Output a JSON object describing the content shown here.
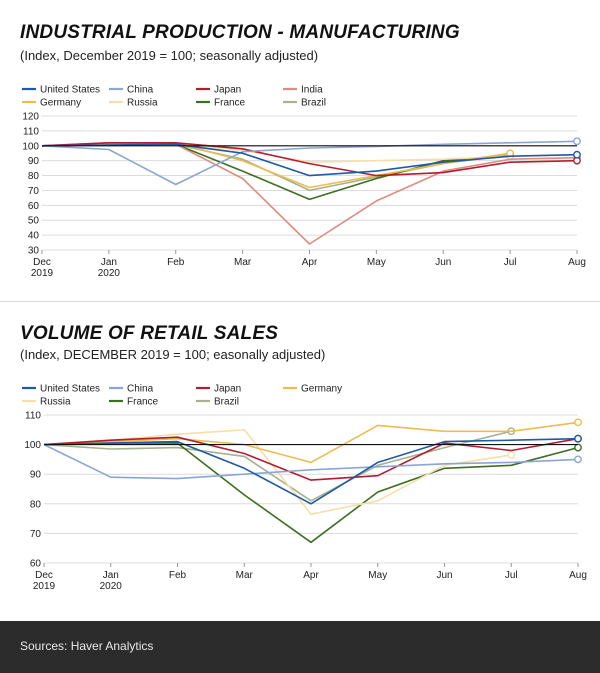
{
  "colors": {
    "United States": "#1f5aa6",
    "China": "#8aa6d2",
    "Japan": "#b01e2f",
    "India": "#e08b80",
    "Germany": "#ecbc4e",
    "Russia": "#f6dfaa",
    "France": "#3e6e22",
    "Brazil": "#a6b18e"
  },
  "footer": {
    "source": "Sources: Haver Analytics"
  },
  "chart_data": [
    {
      "type": "line",
      "title": "INDUSTRIAL PRODUCTION - MANUFACTURING",
      "subtitle": "(Index, December 2019 = 100; seasonally adjusted)",
      "categories": [
        "Dec\n2019",
        "Jan\n2020",
        "Feb",
        "Mar",
        "Apr",
        "May",
        "Jun",
        "Jul",
        "Aug"
      ],
      "ylim": [
        30,
        120
      ],
      "yticks": [
        30,
        40,
        50,
        60,
        70,
        80,
        90,
        100,
        110,
        120
      ],
      "reference_line": 100,
      "legend": [
        "United States",
        "China",
        "Japan",
        "India",
        "Germany",
        "Russia",
        "France",
        "Brazil"
      ],
      "series": [
        {
          "name": "United States",
          "values": [
            100,
            100.5,
            101,
            95,
            80,
            83,
            89,
            93,
            94
          ]
        },
        {
          "name": "China",
          "values": [
            100,
            97.5,
            74,
            96,
            98.5,
            99.5,
            101,
            102,
            103
          ]
        },
        {
          "name": "Japan",
          "values": [
            100,
            102,
            102,
            98,
            88,
            80,
            82,
            89,
            90
          ]
        },
        {
          "name": "India",
          "values": [
            100,
            102,
            101,
            78,
            34,
            63,
            83,
            91,
            92
          ]
        },
        {
          "name": "Germany",
          "values": [
            100,
            101.5,
            102,
            90,
            72,
            80,
            88,
            95,
            null
          ]
        },
        {
          "name": "Russia",
          "values": [
            100,
            100.5,
            101,
            97,
            89,
            90,
            91,
            93,
            null
          ]
        },
        {
          "name": "France",
          "values": [
            100,
            101,
            101,
            83,
            64,
            78,
            90,
            93,
            null
          ]
        },
        {
          "name": "Brazil",
          "values": [
            100,
            101,
            101,
            91,
            70,
            79,
            88,
            94,
            null
          ]
        }
      ]
    },
    {
      "type": "line",
      "title": "VOLUME OF RETAIL SALES",
      "subtitle": "(Index, DECEMBER 2019 = 100; easonally adjusted)",
      "categories": [
        "Dec\n2019",
        "Jan\n2020",
        "Feb",
        "Mar",
        "Apr",
        "May",
        "Jun",
        "Jul",
        "Aug"
      ],
      "ylim": [
        60,
        110
      ],
      "yticks": [
        60,
        70,
        80,
        90,
        100,
        110
      ],
      "reference_line": 100,
      "legend": [
        "United States",
        "China",
        "Japan",
        "Germany",
        "Russia",
        "France",
        "Brazil"
      ],
      "series": [
        {
          "name": "United States",
          "values": [
            100,
            100.5,
            101,
            92,
            80,
            94,
            101,
            101.5,
            102
          ]
        },
        {
          "name": "China",
          "values": [
            100,
            89,
            88.5,
            90,
            91.5,
            92.5,
            93.5,
            94,
            95
          ]
        },
        {
          "name": "Japan",
          "values": [
            100,
            101.5,
            102.5,
            97,
            88,
            89.5,
            100.5,
            98,
            102
          ]
        },
        {
          "name": "Germany",
          "values": [
            100,
            101,
            102,
            100,
            94,
            106.5,
            104.5,
            104.5,
            107.5
          ]
        },
        {
          "name": "Russia",
          "values": [
            100,
            101.5,
            103.5,
            105,
            76.5,
            81,
            93,
            96.5,
            null
          ]
        },
        {
          "name": "France",
          "values": [
            100,
            100.5,
            100.5,
            83,
            67,
            84,
            92,
            93,
            99
          ]
        },
        {
          "name": "Brazil",
          "values": [
            100,
            98.5,
            99,
            96,
            81,
            93,
            99,
            104.5,
            null
          ]
        }
      ]
    }
  ]
}
